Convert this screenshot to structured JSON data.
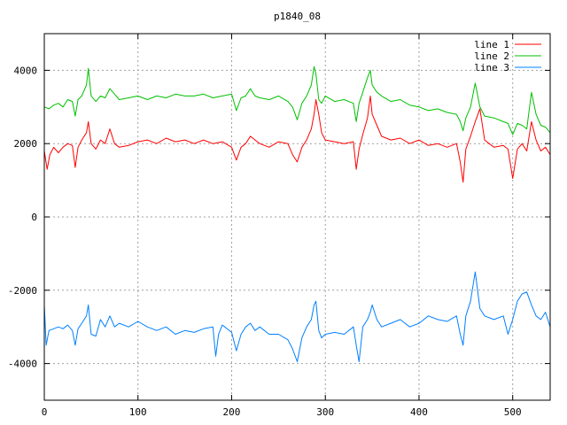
{
  "chart_data": {
    "type": "line",
    "title": "p1840_08",
    "xlabel": "",
    "ylabel": "",
    "xlim": [
      0,
      540
    ],
    "ylim": [
      -5000,
      5000
    ],
    "xticks": [
      0,
      100,
      200,
      300,
      400,
      500
    ],
    "yticks": [
      -4000,
      -2000,
      0,
      2000,
      4000
    ],
    "grid": true,
    "legend_position": "top-right",
    "series": [
      {
        "name": "line 1",
        "color": "#ff0000",
        "x": [
          0,
          3,
          6,
          10,
          15,
          20,
          25,
          30,
          33,
          36,
          40,
          45,
          47,
          50,
          55,
          60,
          65,
          70,
          75,
          80,
          90,
          100,
          110,
          120,
          130,
          140,
          150,
          160,
          170,
          180,
          190,
          200,
          205,
          210,
          215,
          220,
          225,
          230,
          240,
          250,
          260,
          265,
          270,
          275,
          280,
          285,
          288,
          290,
          293,
          296,
          300,
          310,
          320,
          330,
          333,
          336,
          340,
          345,
          348,
          350,
          355,
          360,
          370,
          380,
          390,
          400,
          410,
          420,
          430,
          440,
          444,
          447,
          450,
          455,
          460,
          465,
          470,
          480,
          490,
          495,
          500,
          505,
          510,
          515,
          520,
          525,
          530,
          535,
          540
        ],
        "y": [
          1800,
          1300,
          1700,
          1900,
          1750,
          1900,
          2000,
          1950,
          1350,
          1900,
          2100,
          2300,
          2600,
          2000,
          1850,
          2100,
          2000,
          2400,
          2000,
          1900,
          1950,
          2050,
          2100,
          2000,
          2150,
          2050,
          2100,
          2000,
          2100,
          2000,
          2050,
          1900,
          1550,
          1900,
          2000,
          2200,
          2100,
          2000,
          1900,
          2050,
          2000,
          1700,
          1500,
          1900,
          2100,
          2400,
          2800,
          3200,
          2800,
          2300,
          2100,
          2050,
          2000,
          2050,
          1300,
          1850,
          2250,
          2700,
          3300,
          2800,
          2500,
          2200,
          2100,
          2150,
          2000,
          2100,
          1950,
          2000,
          1900,
          2000,
          1500,
          950,
          1850,
          2200,
          2600,
          2950,
          2100,
          1900,
          1950,
          1850,
          1050,
          1850,
          2000,
          1800,
          2600,
          2100,
          1800,
          1900,
          1700
        ]
      },
      {
        "name": "line 2",
        "color": "#00c000",
        "x": [
          0,
          5,
          10,
          15,
          20,
          25,
          30,
          33,
          36,
          40,
          45,
          47,
          50,
          55,
          60,
          65,
          70,
          75,
          80,
          90,
          100,
          110,
          120,
          130,
          140,
          150,
          160,
          170,
          180,
          190,
          200,
          205,
          210,
          215,
          220,
          225,
          230,
          240,
          250,
          260,
          265,
          270,
          275,
          280,
          285,
          288,
          290,
          293,
          296,
          300,
          310,
          320,
          330,
          333,
          336,
          340,
          345,
          348,
          350,
          355,
          360,
          370,
          380,
          390,
          400,
          410,
          420,
          430,
          440,
          444,
          447,
          450,
          455,
          460,
          465,
          470,
          480,
          490,
          495,
          500,
          505,
          510,
          515,
          520,
          525,
          530,
          535,
          540
        ],
        "y": [
          3000,
          2950,
          3050,
          3100,
          3000,
          3200,
          3150,
          2750,
          3200,
          3300,
          3600,
          4050,
          3300,
          3150,
          3300,
          3250,
          3500,
          3350,
          3200,
          3250,
          3300,
          3200,
          3300,
          3250,
          3350,
          3300,
          3300,
          3350,
          3250,
          3300,
          3350,
          2900,
          3250,
          3300,
          3500,
          3300,
          3250,
          3200,
          3300,
          3150,
          3000,
          2650,
          3100,
          3300,
          3600,
          4100,
          3900,
          3200,
          3100,
          3300,
          3150,
          3200,
          3100,
          2600,
          3100,
          3400,
          3800,
          4000,
          3600,
          3400,
          3300,
          3150,
          3200,
          3050,
          3000,
          2900,
          2950,
          2850,
          2800,
          2600,
          2350,
          2700,
          3000,
          3650,
          3000,
          2750,
          2700,
          2600,
          2550,
          2250,
          2550,
          2500,
          2400,
          3400,
          2800,
          2500,
          2450,
          2300
        ]
      },
      {
        "name": "line 3",
        "color": "#0080ff",
        "x": [
          0,
          2,
          5,
          10,
          15,
          20,
          25,
          30,
          33,
          36,
          40,
          45,
          47,
          50,
          55,
          60,
          65,
          70,
          75,
          80,
          90,
          100,
          110,
          120,
          130,
          140,
          150,
          160,
          170,
          180,
          183,
          186,
          190,
          200,
          205,
          210,
          215,
          220,
          225,
          230,
          240,
          250,
          260,
          265,
          270,
          275,
          280,
          285,
          288,
          290,
          293,
          296,
          300,
          310,
          320,
          330,
          333,
          336,
          340,
          345,
          348,
          350,
          355,
          360,
          370,
          380,
          390,
          400,
          410,
          420,
          430,
          440,
          444,
          447,
          450,
          455,
          460,
          465,
          470,
          480,
          490,
          495,
          500,
          505,
          510,
          515,
          520,
          525,
          530,
          535,
          540
        ],
        "y": [
          -2400,
          -3500,
          -3100,
          -3050,
          -3000,
          -3050,
          -2950,
          -3100,
          -3500,
          -3050,
          -2900,
          -2700,
          -2400,
          -3200,
          -3250,
          -2800,
          -3000,
          -2700,
          -3000,
          -2900,
          -3000,
          -2850,
          -3000,
          -3100,
          -3000,
          -3200,
          -3100,
          -3150,
          -3050,
          -3000,
          -3800,
          -3200,
          -2950,
          -3150,
          -3650,
          -3200,
          -3000,
          -2900,
          -3100,
          -3000,
          -3200,
          -3200,
          -3350,
          -3600,
          -3950,
          -3300,
          -3000,
          -2800,
          -2400,
          -2300,
          -3100,
          -3300,
          -3200,
          -3150,
          -3200,
          -3000,
          -3500,
          -3950,
          -3000,
          -2800,
          -2600,
          -2400,
          -2800,
          -3000,
          -2900,
          -2800,
          -3000,
          -2900,
          -2700,
          -2800,
          -2850,
          -2700,
          -3200,
          -3500,
          -2700,
          -2300,
          -1500,
          -2500,
          -2700,
          -2800,
          -2700,
          -3200,
          -2800,
          -2300,
          -2100,
          -2050,
          -2400,
          -2700,
          -2800,
          -2600,
          -3000
        ]
      }
    ]
  }
}
